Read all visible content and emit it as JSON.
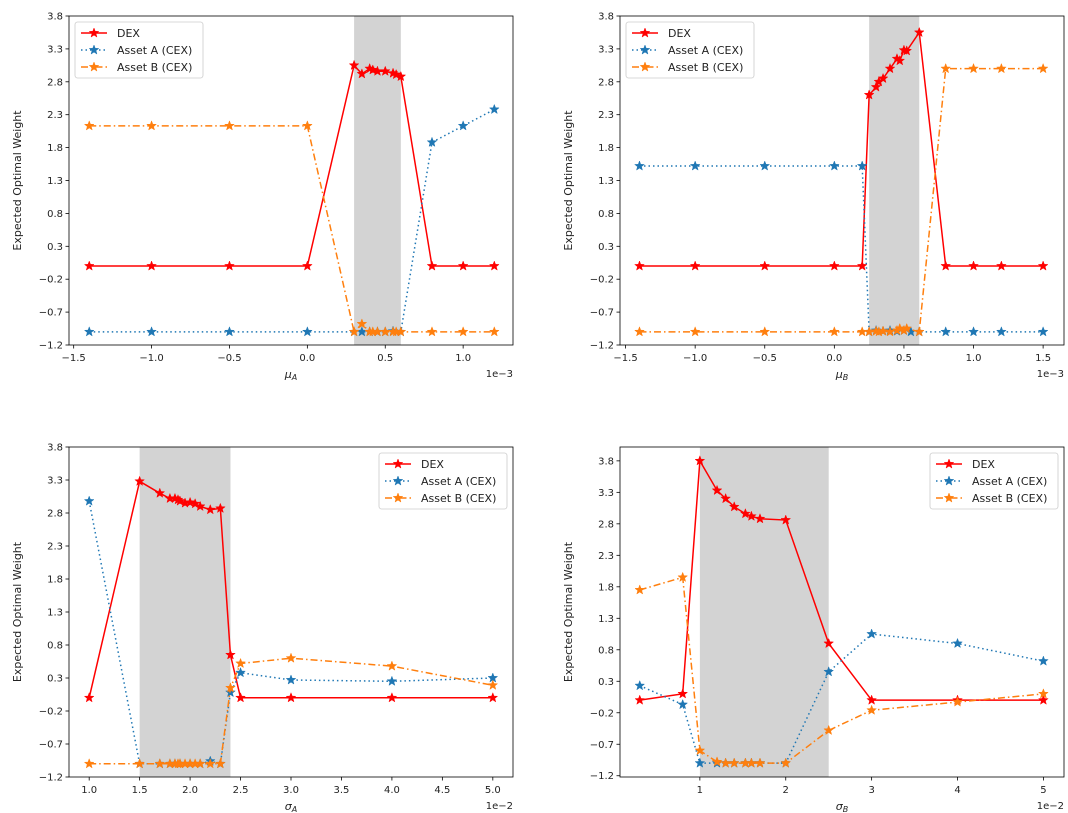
{
  "colors": {
    "dex": "#ff0000",
    "asset_a": "#1f77b4",
    "asset_b": "#ff7f0e",
    "shade": "#d3d3d3"
  },
  "chart_data": [
    {
      "type": "line",
      "id": "mu_a",
      "xlabel": "μ_A",
      "xlabel_main": "μ",
      "xlabel_sub": "A",
      "ylabel": "Expected Optimal Weight",
      "x_scale_label": "1e−3",
      "xlim": [
        -1.53,
        1.32
      ],
      "ylim": [
        -1.2,
        3.8
      ],
      "xticks": [
        -1.5,
        -1.0,
        -0.5,
        0.0,
        0.5,
        1.0
      ],
      "xtick_labels": [
        "−1.5",
        "−1.0",
        "−0.5",
        "0.0",
        "0.5",
        "1.0"
      ],
      "yticks": [
        -1.2,
        -0.7,
        -0.2,
        0.3,
        0.8,
        1.3,
        1.8,
        2.3,
        2.8,
        3.3,
        3.8
      ],
      "ytick_labels": [
        "−1.2",
        "−0.7",
        "−0.2",
        "0.3",
        "0.8",
        "1.3",
        "1.8",
        "2.3",
        "2.8",
        "3.3",
        "3.8"
      ],
      "shaded_region": [
        0.3,
        0.6
      ],
      "legend_position": "upper-left",
      "legend": [
        "DEX",
        "Asset A (CEX)",
        "Asset B (CEX)"
      ],
      "series": [
        {
          "name": "DEX",
          "style": "solid",
          "x": [
            -1.4,
            -1.0,
            -0.5,
            0.0,
            0.3,
            0.35,
            0.4,
            0.42,
            0.45,
            0.5,
            0.55,
            0.57,
            0.6,
            0.8,
            1.0,
            1.2
          ],
          "y": [
            0.0,
            0.0,
            0.0,
            0.0,
            3.05,
            2.92,
            3.0,
            2.98,
            2.96,
            2.96,
            2.93,
            2.91,
            2.88,
            0.0,
            0.0,
            0.0
          ]
        },
        {
          "name": "Asset A (CEX)",
          "style": "dotted",
          "x": [
            -1.4,
            -1.0,
            -0.5,
            0.0,
            0.3,
            0.35,
            0.4,
            0.45,
            0.5,
            0.55,
            0.6,
            0.8,
            1.0,
            1.2
          ],
          "y": [
            -1.0,
            -1.0,
            -1.0,
            -1.0,
            -1.0,
            -1.0,
            -1.0,
            -1.0,
            -1.0,
            -0.99,
            -1.0,
            1.88,
            2.13,
            2.38
          ]
        },
        {
          "name": "Asset B (CEX)",
          "style": "dashdot",
          "x": [
            -1.4,
            -1.0,
            -0.5,
            0.0,
            0.3,
            0.35,
            0.4,
            0.42,
            0.45,
            0.5,
            0.55,
            0.57,
            0.6,
            0.8,
            1.0,
            1.2
          ],
          "y": [
            2.13,
            2.13,
            2.13,
            2.13,
            -1.0,
            -0.88,
            -1.0,
            -1.0,
            -1.0,
            -1.0,
            -1.0,
            -1.0,
            -1.0,
            -1.0,
            -1.0,
            -1.0
          ]
        }
      ]
    },
    {
      "type": "line",
      "id": "mu_b",
      "xlabel": "μ_B",
      "xlabel_main": "μ",
      "xlabel_sub": "B",
      "ylabel": "Expected Optimal Weight",
      "x_scale_label": "1e−3",
      "xlim": [
        -1.54,
        1.65
      ],
      "ylim": [
        -1.2,
        3.8
      ],
      "xticks": [
        -1.5,
        -1.0,
        -0.5,
        0.0,
        0.5,
        1.0,
        1.5
      ],
      "xtick_labels": [
        "−1.5",
        "−1.0",
        "−0.5",
        "0.0",
        "0.5",
        "1.0",
        "1.5"
      ],
      "yticks": [
        -1.2,
        -0.7,
        -0.2,
        0.3,
        0.8,
        1.3,
        1.8,
        2.3,
        2.8,
        3.3,
        3.8
      ],
      "ytick_labels": [
        "−1.2",
        "−0.7",
        "−0.2",
        "0.3",
        "0.8",
        "1.3",
        "1.8",
        "2.3",
        "2.8",
        "3.3",
        "3.8"
      ],
      "shaded_region": [
        0.25,
        0.61
      ],
      "legend_position": "upper-left",
      "legend": [
        "DEX",
        "Asset A (CEX)",
        "Asset B (CEX)"
      ],
      "series": [
        {
          "name": "DEX",
          "style": "solid",
          "x": [
            -1.4,
            -1.0,
            -0.5,
            0.0,
            0.2,
            0.25,
            0.3,
            0.32,
            0.35,
            0.4,
            0.45,
            0.47,
            0.5,
            0.52,
            0.61,
            0.8,
            1.0,
            1.2,
            1.5
          ],
          "y": [
            0.0,
            0.0,
            0.0,
            0.0,
            0.0,
            2.6,
            2.72,
            2.8,
            2.85,
            3.0,
            3.15,
            3.12,
            3.28,
            3.27,
            3.55,
            0.0,
            0.0,
            0.0,
            0.0
          ]
        },
        {
          "name": "Asset A (CEX)",
          "style": "dotted",
          "x": [
            -1.4,
            -1.0,
            -0.5,
            0.0,
            0.2,
            0.25,
            0.3,
            0.35,
            0.4,
            0.45,
            0.5,
            0.55,
            0.61,
            0.8,
            1.0,
            1.2,
            1.5
          ],
          "y": [
            1.52,
            1.52,
            1.52,
            1.52,
            1.52,
            -1.0,
            -0.98,
            -0.99,
            -0.98,
            -0.99,
            -0.98,
            -1.0,
            -1.0,
            -1.0,
            -1.0,
            -1.0,
            -1.0
          ]
        },
        {
          "name": "Asset B (CEX)",
          "style": "dashdot",
          "x": [
            -1.4,
            -1.0,
            -0.5,
            0.0,
            0.2,
            0.25,
            0.3,
            0.32,
            0.35,
            0.4,
            0.45,
            0.47,
            0.5,
            0.52,
            0.61,
            0.8,
            1.0,
            1.2,
            1.5
          ],
          "y": [
            -1.0,
            -1.0,
            -1.0,
            -1.0,
            -1.0,
            -1.0,
            -0.99,
            -1.0,
            -0.99,
            -1.0,
            -0.98,
            -0.95,
            -0.98,
            -0.95,
            -1.0,
            3.0,
            3.0,
            3.0,
            3.0
          ]
        }
      ]
    },
    {
      "type": "line",
      "id": "sigma_a",
      "xlabel": "σ_A",
      "xlabel_main": "σ",
      "xlabel_sub": "A",
      "ylabel": "Expected Optimal Weight",
      "x_scale_label": "1e−2",
      "xlim": [
        0.8,
        5.2
      ],
      "ylim": [
        -1.2,
        3.8
      ],
      "xticks": [
        1.0,
        1.5,
        2.0,
        2.5,
        3.0,
        3.5,
        4.0,
        4.5,
        5.0
      ],
      "xtick_labels": [
        "1.0",
        "1.5",
        "2.0",
        "2.5",
        "3.0",
        "3.5",
        "4.0",
        "4.5",
        "5.0"
      ],
      "yticks": [
        -1.2,
        -0.7,
        -0.2,
        0.3,
        0.8,
        1.3,
        1.8,
        2.3,
        2.8,
        3.3,
        3.8
      ],
      "ytick_labels": [
        "−1.2",
        "−0.7",
        "−0.2",
        "0.3",
        "0.8",
        "1.3",
        "1.8",
        "2.3",
        "2.8",
        "3.3",
        "3.8"
      ],
      "shaded_region": [
        1.5,
        2.4
      ],
      "legend_position": "upper-right",
      "legend": [
        "DEX",
        "Asset A (CEX)",
        "Asset B (CEX)"
      ],
      "series": [
        {
          "name": "DEX",
          "style": "solid",
          "x": [
            1.0,
            1.5,
            1.7,
            1.8,
            1.85,
            1.88,
            1.9,
            1.95,
            2.0,
            2.05,
            2.1,
            2.2,
            2.3,
            2.4,
            2.5,
            3.0,
            4.0,
            5.0
          ],
          "y": [
            0.0,
            3.28,
            3.1,
            3.02,
            3.02,
            3.0,
            2.98,
            2.95,
            2.96,
            2.94,
            2.9,
            2.85,
            2.87,
            0.65,
            0.0,
            0.0,
            0.0,
            0.0
          ]
        },
        {
          "name": "Asset A (CEX)",
          "style": "dotted",
          "x": [
            1.0,
            1.5,
            1.7,
            1.8,
            1.85,
            1.9,
            2.0,
            2.1,
            2.2,
            2.3,
            2.4,
            2.5,
            3.0,
            4.0,
            5.0
          ],
          "y": [
            2.98,
            -1.0,
            -1.0,
            -1.0,
            -1.0,
            -1.0,
            -1.0,
            -1.0,
            -0.96,
            -1.0,
            0.08,
            0.38,
            0.27,
            0.25,
            0.3
          ]
        },
        {
          "name": "Asset B (CEX)",
          "style": "dashdot",
          "x": [
            1.0,
            1.5,
            1.7,
            1.8,
            1.85,
            1.88,
            1.9,
            1.95,
            2.0,
            2.05,
            2.1,
            2.2,
            2.3,
            2.4,
            2.5,
            3.0,
            4.0,
            5.0
          ],
          "y": [
            -1.0,
            -1.0,
            -1.0,
            -1.0,
            -1.0,
            -1.0,
            -1.0,
            -1.0,
            -1.0,
            -1.0,
            -1.0,
            -1.0,
            -1.0,
            0.15,
            0.52,
            0.6,
            0.48,
            0.19
          ]
        }
      ]
    },
    {
      "type": "line",
      "id": "sigma_b",
      "xlabel": "σ_B",
      "xlabel_main": "σ",
      "xlabel_sub": "B",
      "ylabel": "Expected Optimal Weight",
      "x_scale_label": "1e−2",
      "xlim": [
        0.07,
        5.24
      ],
      "ylim": [
        -1.22,
        4.02
      ],
      "xticks": [
        1,
        2,
        3,
        4,
        5
      ],
      "xtick_labels": [
        "1",
        "2",
        "3",
        "4",
        "5"
      ],
      "yticks": [
        -1.2,
        -0.7,
        -0.2,
        0.3,
        0.8,
        1.3,
        1.8,
        2.3,
        2.8,
        3.3,
        3.8
      ],
      "ytick_labels": [
        "−1.2",
        "−0.7",
        "−0.2",
        "0.3",
        "0.8",
        "1.3",
        "1.8",
        "2.3",
        "2.8",
        "3.3",
        "3.8"
      ],
      "shaded_region": [
        1.0,
        2.5
      ],
      "legend_position": "upper-right",
      "legend": [
        "DEX",
        "Asset A (CEX)",
        "Asset B (CEX)"
      ],
      "series": [
        {
          "name": "DEX",
          "style": "solid",
          "x": [
            0.3,
            0.8,
            1.0,
            1.2,
            1.3,
            1.4,
            1.53,
            1.6,
            1.7,
            2.0,
            2.5,
            3.0,
            4.0,
            5.0
          ],
          "y": [
            0.0,
            0.1,
            3.8,
            3.33,
            3.2,
            3.07,
            2.96,
            2.92,
            2.88,
            2.86,
            0.9,
            0.0,
            0.0,
            0.0
          ]
        },
        {
          "name": "Asset A (CEX)",
          "style": "dotted",
          "x": [
            0.3,
            0.8,
            1.0,
            1.2,
            1.3,
            1.4,
            1.53,
            1.6,
            1.7,
            2.0,
            2.5,
            3.0,
            4.0,
            5.0
          ],
          "y": [
            0.23,
            -0.07,
            -1.0,
            -1.0,
            -1.0,
            -1.0,
            -1.0,
            -1.0,
            -1.0,
            -1.0,
            0.45,
            1.05,
            0.9,
            0.62
          ]
        },
        {
          "name": "Asset B (CEX)",
          "style": "dashdot",
          "x": [
            0.3,
            0.8,
            1.0,
            1.2,
            1.3,
            1.4,
            1.53,
            1.6,
            1.7,
            2.0,
            2.5,
            3.0,
            4.0,
            5.0
          ],
          "y": [
            1.75,
            1.95,
            -0.8,
            -0.98,
            -1.0,
            -1.0,
            -1.0,
            -1.0,
            -1.0,
            -1.0,
            -0.48,
            -0.16,
            -0.03,
            0.1
          ]
        }
      ]
    }
  ]
}
